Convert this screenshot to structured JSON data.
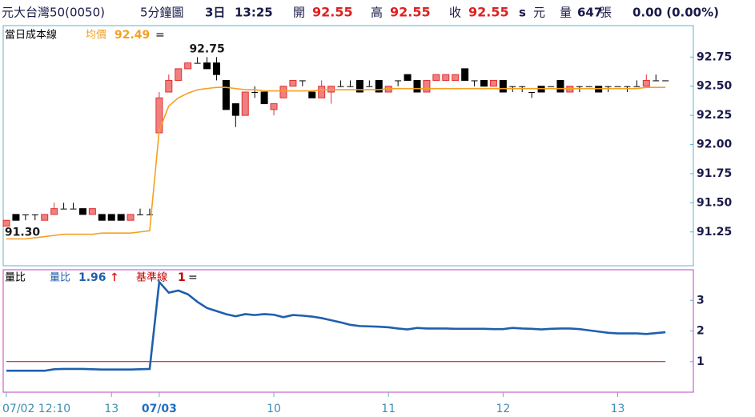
{
  "header": {
    "name": "元大台灣50(0050)",
    "interval": "5分鐘圖",
    "days": "3日",
    "time": "13:25",
    "open_label": "開",
    "open": 92.55,
    "high_label": "高",
    "high": 92.55,
    "close_label": "收",
    "close": 92.55,
    "flag": "s",
    "currency": "元",
    "volume_label": "量",
    "volume": 647,
    "volume_unit": "張",
    "change": "0.00 (0.00%)"
  },
  "chart_data": [
    {
      "type": "candlestick",
      "title": "當日成本線",
      "up_color": "#f08080",
      "up_edge": "#e03030",
      "down_color": "#000000",
      "open": [
        91.3,
        91.4,
        91.4,
        91.4,
        91.35,
        91.4,
        91.45,
        91.45,
        91.45,
        91.4,
        91.4,
        91.4,
        91.4,
        91.35,
        91.4,
        91.4,
        92.1,
        92.45,
        92.55,
        92.65,
        92.7,
        92.7,
        92.7,
        92.55,
        92.35,
        92.25,
        92.45,
        92.45,
        92.3,
        92.4,
        92.5,
        92.55,
        92.45,
        92.4,
        92.45,
        92.5,
        92.5,
        92.55,
        92.5,
        92.55,
        92.45,
        92.55,
        92.6,
        92.55,
        92.45,
        92.55,
        92.55,
        92.55,
        92.65,
        92.55,
        92.55,
        92.5,
        92.55,
        92.5,
        92.5,
        92.45,
        92.5,
        92.5,
        92.55,
        92.45,
        92.5,
        92.5,
        92.5,
        92.5,
        92.5,
        92.5,
        92.5,
        92.5,
        92.55,
        92.55
      ],
      "high": [
        91.35,
        91.4,
        91.4,
        91.4,
        91.4,
        91.5,
        91.5,
        91.5,
        91.45,
        91.45,
        91.4,
        91.4,
        91.4,
        91.4,
        91.45,
        91.45,
        92.45,
        92.6,
        92.65,
        92.7,
        92.75,
        92.75,
        92.75,
        92.55,
        92.35,
        92.45,
        92.5,
        92.45,
        92.35,
        92.5,
        92.55,
        92.55,
        92.45,
        92.55,
        92.5,
        92.55,
        92.55,
        92.55,
        92.55,
        92.55,
        92.5,
        92.55,
        92.6,
        92.55,
        92.55,
        92.6,
        92.6,
        92.6,
        92.65,
        92.55,
        92.55,
        92.55,
        92.55,
        92.5,
        92.5,
        92.45,
        92.5,
        92.5,
        92.55,
        92.5,
        92.5,
        92.5,
        92.5,
        92.5,
        92.5,
        92.5,
        92.55,
        92.6,
        92.6,
        92.55
      ],
      "low": [
        91.3,
        91.35,
        91.35,
        91.35,
        91.35,
        91.4,
        91.45,
        91.45,
        91.4,
        91.4,
        91.35,
        91.35,
        91.35,
        91.35,
        91.4,
        91.4,
        92.1,
        92.45,
        92.55,
        92.65,
        92.7,
        92.65,
        92.55,
        92.3,
        92.15,
        92.25,
        92.4,
        92.35,
        92.25,
        92.4,
        92.5,
        92.5,
        92.4,
        92.4,
        92.35,
        92.5,
        92.5,
        92.45,
        92.5,
        92.45,
        92.45,
        92.5,
        92.55,
        92.45,
        92.45,
        92.55,
        92.55,
        92.55,
        92.55,
        92.5,
        92.5,
        92.5,
        92.45,
        92.45,
        92.45,
        92.4,
        92.45,
        92.5,
        92.45,
        92.45,
        92.45,
        92.5,
        92.45,
        92.45,
        92.5,
        92.45,
        92.5,
        92.5,
        92.55,
        92.55
      ],
      "close": [
        91.35,
        91.35,
        91.4,
        91.4,
        91.4,
        91.45,
        91.45,
        91.45,
        91.4,
        91.45,
        91.35,
        91.35,
        91.35,
        91.4,
        91.4,
        91.4,
        92.4,
        92.55,
        92.65,
        92.7,
        92.7,
        92.65,
        92.6,
        92.3,
        92.25,
        92.45,
        92.45,
        92.35,
        92.35,
        92.5,
        92.55,
        92.55,
        92.4,
        92.5,
        92.5,
        92.5,
        92.5,
        92.45,
        92.5,
        92.45,
        92.5,
        92.55,
        92.55,
        92.45,
        92.55,
        92.6,
        92.6,
        92.6,
        92.55,
        92.55,
        92.5,
        92.55,
        92.45,
        92.5,
        92.5,
        92.45,
        92.45,
        92.5,
        92.45,
        92.5,
        92.5,
        92.5,
        92.45,
        92.5,
        92.5,
        92.5,
        92.5,
        92.55,
        92.55,
        92.55
      ],
      "series": [
        {
          "name": "均價",
          "color": "#f5a020",
          "legend_value": 92.49,
          "legend_suffix": "=",
          "values": [
            91.19,
            91.19,
            91.19,
            91.2,
            91.21,
            91.22,
            91.23,
            91.23,
            91.23,
            91.23,
            91.24,
            91.24,
            91.24,
            91.24,
            91.25,
            91.26,
            92.12,
            92.33,
            92.4,
            92.44,
            92.47,
            92.48,
            92.49,
            92.49,
            92.48,
            92.47,
            92.47,
            92.46,
            92.46,
            92.46,
            92.46,
            92.46,
            92.46,
            92.47,
            92.47,
            92.47,
            92.47,
            92.47,
            92.47,
            92.47,
            92.48,
            92.48,
            92.48,
            92.48,
            92.48,
            92.48,
            92.48,
            92.48,
            92.48,
            92.48,
            92.48,
            92.48,
            92.48,
            92.48,
            92.48,
            92.48,
            92.48,
            92.48,
            92.48,
            92.48,
            92.48,
            92.48,
            92.48,
            92.48,
            92.48,
            92.48,
            92.48,
            92.49,
            92.49,
            92.49
          ]
        }
      ],
      "high_label": "92.75",
      "low_label": "91.30",
      "ylim": [
        90.96,
        93.02
      ],
      "yticks": [
        92.75,
        {
          "value": 92.5,
          "label": "92.50"
        },
        92.25,
        {
          "value": 92,
          "label": "92.00"
        },
        91.75,
        {
          "value": 91.5,
          "label": "91.50"
        },
        91.25
      ]
    },
    {
      "type": "line",
      "title": "量比",
      "categories": [
        "07/02 12:10",
        null,
        null,
        null,
        null,
        null,
        null,
        null,
        null,
        null,
        null,
        "13",
        null,
        null,
        null,
        null,
        "07/03",
        null,
        null,
        null,
        null,
        null,
        null,
        null,
        null,
        null,
        null,
        null,
        "10",
        null,
        null,
        null,
        null,
        null,
        null,
        null,
        null,
        null,
        null,
        null,
        "11",
        null,
        null,
        null,
        null,
        null,
        null,
        null,
        null,
        null,
        null,
        null,
        "12",
        null,
        null,
        null,
        null,
        null,
        null,
        null,
        null,
        null,
        null,
        null,
        "13",
        null,
        null,
        null,
        null,
        null
      ],
      "series": [
        {
          "name": "量比",
          "color": "#1f5fae",
          "legend_value": 1.96,
          "legend_suffix": "↑",
          "values": [
            0.7,
            0.7,
            0.7,
            0.7,
            0.7,
            0.75,
            0.76,
            0.76,
            0.76,
            0.75,
            0.74,
            0.74,
            0.74,
            0.74,
            0.75,
            0.76,
            3.6,
            3.25,
            3.32,
            3.2,
            2.95,
            2.75,
            2.65,
            2.55,
            2.48,
            2.55,
            2.52,
            2.55,
            2.53,
            2.45,
            2.52,
            2.5,
            2.47,
            2.42,
            2.35,
            2.28,
            2.2,
            2.16,
            2.15,
            2.14,
            2.12,
            2.08,
            2.05,
            2.1,
            2.08,
            2.08,
            2.08,
            2.07,
            2.07,
            2.07,
            2.07,
            2.06,
            2.06,
            2.1,
            2.08,
            2.07,
            2.05,
            2.07,
            2.08,
            2.08,
            2.06,
            2.02,
            1.98,
            1.94,
            1.92,
            1.92,
            1.92,
            1.9,
            1.93,
            1.96
          ]
        }
      ],
      "reference": {
        "name": "基準線",
        "value": 1,
        "color": "#c00000",
        "suffix": "="
      },
      "ylim": [
        0,
        4
      ],
      "yticks": [
        1,
        2,
        3
      ]
    }
  ]
}
